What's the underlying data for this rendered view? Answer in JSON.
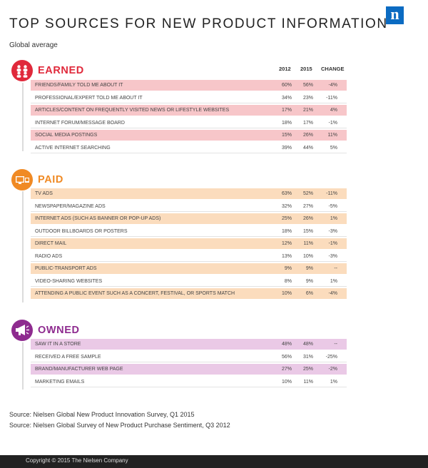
{
  "logo": {
    "letter": "n",
    "color": "#0b6bc2"
  },
  "title": "TOP SOURCES FOR NEW PRODUCT INFORMATION",
  "subtitle": "Global average",
  "columns": {
    "y2012": "2012",
    "y2015": "2015",
    "change": "CHANGE"
  },
  "sections": [
    {
      "name": "EARNED",
      "icon": "people-icon",
      "color": "#e0293b",
      "highlight": "#f7c6c9",
      "rows": [
        {
          "label": "FRIENDS/FAMILY TOLD ME ABOUT IT",
          "v2012": "60%",
          "v2015": "56%",
          "change": "-4%",
          "highlighted": true
        },
        {
          "label": "PROFESSIONAL/EXPERT TOLD ME ABOUT IT",
          "v2012": "34%",
          "v2015": "23%",
          "change": "-11%",
          "highlighted": false
        },
        {
          "label": "ARTICLES/CONTENT ON FREQUENTLY VISITED NEWS OR LIFESTYLE WEBSITES",
          "v2012": "17%",
          "v2015": "21%",
          "change": "4%",
          "highlighted": true
        },
        {
          "label": "INTERNET FORUM/MESSAGE BOARD",
          "v2012": "18%",
          "v2015": "17%",
          "change": "-1%",
          "highlighted": false
        },
        {
          "label": "SOCIAL MEDIA POSTINGS",
          "v2012": "15%",
          "v2015": "26%",
          "change": "11%",
          "highlighted": true
        },
        {
          "label": "ACTIVE INTERNET SEARCHING",
          "v2012": "39%",
          "v2015": "44%",
          "change": "5%",
          "highlighted": false
        }
      ]
    },
    {
      "name": "PAID",
      "icon": "screens-icon",
      "color": "#f08a24",
      "highlight": "#fbdcbd",
      "rows": [
        {
          "label": "TV ADS",
          "v2012": "63%",
          "v2015": "52%",
          "change": "-11%",
          "highlighted": true
        },
        {
          "label": "NEWSPAPER/MAGAZINE ADS",
          "v2012": "32%",
          "v2015": "27%",
          "change": "-5%",
          "highlighted": false
        },
        {
          "label": "INTERNET ADS (SUCH AS BANNER OR POP-UP ADS)",
          "v2012": "25%",
          "v2015": "26%",
          "change": "1%",
          "highlighted": true
        },
        {
          "label": "OUTDOOR BILLBOARDS OR POSTERS",
          "v2012": "18%",
          "v2015": "15%",
          "change": "-3%",
          "highlighted": false
        },
        {
          "label": "DIRECT MAIL",
          "v2012": "12%",
          "v2015": "11%",
          "change": "-1%",
          "highlighted": true
        },
        {
          "label": "RADIO ADS",
          "v2012": "13%",
          "v2015": "10%",
          "change": "-3%",
          "highlighted": false
        },
        {
          "label": "PUBLIC-TRANSPORT ADS",
          "v2012": "9%",
          "v2015": "9%",
          "change": "--",
          "highlighted": true
        },
        {
          "label": "VIDEO-SHARING WEBSITES",
          "v2012": "8%",
          "v2015": "9%",
          "change": "1%",
          "highlighted": false
        },
        {
          "label": "ATTENDING A PUBLIC EVENT SUCH AS A CONCERT, FESTIVAL, OR SPORTS MATCH",
          "v2012": "10%",
          "v2015": "6%",
          "change": "-4%",
          "highlighted": true
        }
      ]
    },
    {
      "name": "OWNED",
      "icon": "megaphone-icon",
      "color": "#8e2b8f",
      "highlight": "#eac9e6",
      "rows": [
        {
          "label": "SAW IT IN A STORE",
          "v2012": "48%",
          "v2015": "48%",
          "change": "--",
          "highlighted": true
        },
        {
          "label": "RECEIVED A FREE SAMPLE",
          "v2012": "56%",
          "v2015": "31%",
          "change": "-25%",
          "highlighted": false
        },
        {
          "label": "BRAND/MANUFACTURER WEB PAGE",
          "v2012": "27%",
          "v2015": "25%",
          "change": "-2%",
          "highlighted": true
        },
        {
          "label": "MARKETING EMAILS",
          "v2012": "10%",
          "v2015": "11%",
          "change": "1%",
          "highlighted": false
        }
      ]
    }
  ],
  "sources": [
    "Source: Nielsen Global New Product Innovation Survey, Q1 2015",
    "Source: Nielsen Global Survey of New Product Purchase Sentiment, Q3 2012"
  ],
  "footer": "Copyright © 2015 The Nielsen Company"
}
